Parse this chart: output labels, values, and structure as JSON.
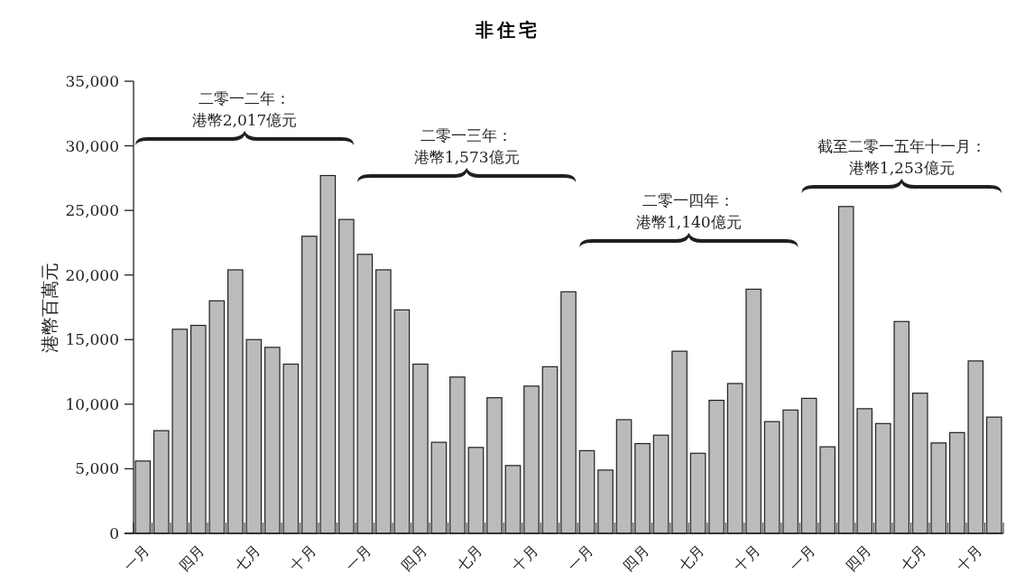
{
  "chart_data": {
    "type": "bar",
    "title": "非住宅",
    "ylabel": "港幣百萬元",
    "categories": [
      "一月",
      null,
      null,
      "四月",
      null,
      null,
      "七月",
      null,
      null,
      "十月",
      null,
      null,
      "一月",
      null,
      null,
      "四月",
      null,
      null,
      "七月",
      null,
      null,
      "十月",
      null,
      null,
      "一月",
      null,
      null,
      "四月",
      null,
      null,
      "七月",
      null,
      null,
      "十月",
      null,
      null,
      "一月",
      null,
      null,
      "四月",
      null,
      null,
      "七月",
      null,
      null,
      "十月",
      null
    ],
    "values": [
      5600,
      7950,
      15800,
      16100,
      18000,
      20400,
      15000,
      14400,
      13100,
      23000,
      27700,
      24300,
      21600,
      20400,
      17300,
      13100,
      7050,
      12100,
      6650,
      10500,
      5250,
      11400,
      12900,
      18700,
      6400,
      4900,
      8800,
      6950,
      7600,
      14100,
      6200,
      10300,
      11600,
      18900,
      8650,
      9550,
      10450,
      6700,
      25300,
      9650,
      8500,
      16400,
      10850,
      7000,
      7800,
      13350,
      9000
    ],
    "color": "#bbbbbb",
    "ylim": [
      0,
      35000
    ],
    "yticks": [
      0,
      {
        "value": 5000,
        "label": "5,000"
      },
      {
        "value": 10000,
        "label": "10,000"
      },
      {
        "value": 15000,
        "label": "15,000"
      },
      {
        "value": 20000,
        "label": "20,000"
      },
      {
        "value": 25000,
        "label": "25,000"
      },
      {
        "value": 30000,
        "label": "30,000"
      },
      {
        "value": 35000,
        "label": "35,000"
      }
    ],
    "grid": false,
    "annotations": [
      "二零一二年：",
      "港幣2,017億元",
      "二零一三年：",
      "港幣1,573億元",
      "二零一四年：",
      "港幣1,140億元",
      "截至二零一五年十一月：",
      "港幣1,253億元"
    ]
  }
}
